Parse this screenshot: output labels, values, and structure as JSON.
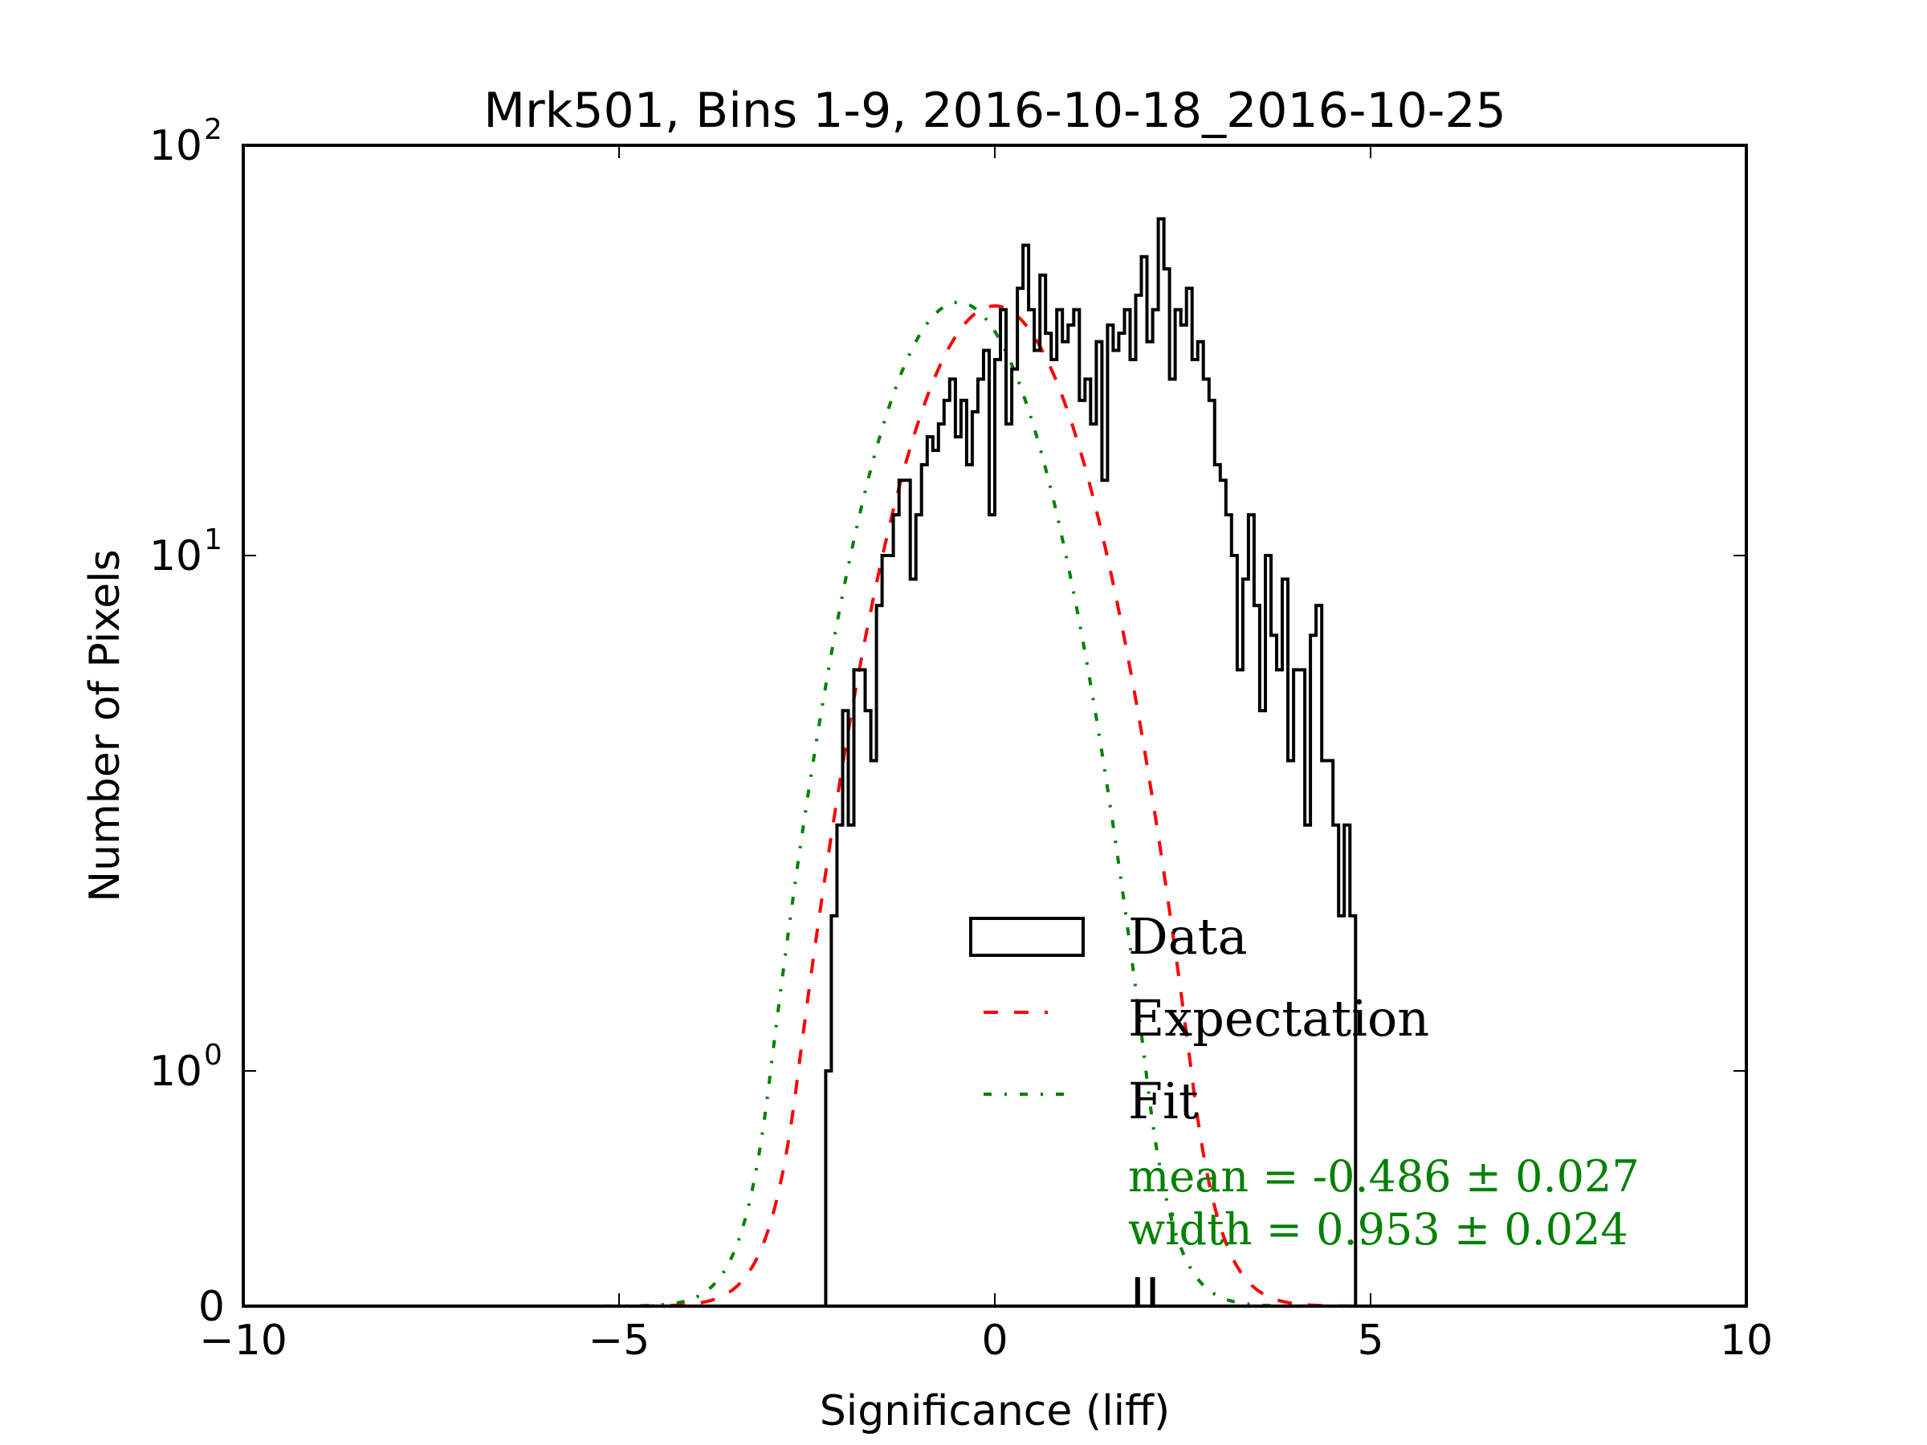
{
  "chart_data": {
    "type": "histogram",
    "title": "Mrk501, Bins 1-9, 2016-10-18_2016-10-25",
    "xlabel": "Significance (liff)",
    "ylabel": "Number of Pixels",
    "xlim": [
      -10,
      10
    ],
    "ylim": [
      0,
      100
    ],
    "yscale": "symlog",
    "x_ticks": [
      {
        "value": -10,
        "label": "−10"
      },
      {
        "value": -5,
        "label": "−5"
      },
      {
        "value": 0,
        "label": "0"
      },
      {
        "value": 5,
        "label": "5"
      },
      {
        "value": 10,
        "label": "10"
      }
    ],
    "y_ticks": [
      {
        "value": 0,
        "base": "0",
        "exp": ""
      },
      {
        "value": 1,
        "base": "10",
        "exp": "0"
      },
      {
        "value": 10,
        "base": "10",
        "exp": "1"
      },
      {
        "value": 100,
        "base": "10",
        "exp": "2"
      }
    ],
    "grid": false,
    "legend": {
      "placement": "lower-right",
      "entries": [
        {
          "label": "Data",
          "style": "step",
          "color": "#000000"
        },
        {
          "label": "Expectation",
          "style": "dashed",
          "color": "#ff0000"
        },
        {
          "label": "Fit",
          "style": "dash-dot",
          "color": "#008000"
        }
      ]
    },
    "annotations": [
      {
        "text": "mean = -0.486 ± 0.027",
        "color": "#008000"
      },
      {
        "text": "width = 0.953 ± 0.024",
        "color": "#008000"
      }
    ],
    "series": [
      {
        "name": "Data",
        "type": "step",
        "color": "#000000",
        "bin_width": 0.075,
        "bin_start": -2.25,
        "counts": [
          1,
          2,
          3,
          5,
          3,
          6,
          6,
          5,
          4,
          8,
          10,
          10,
          12,
          14,
          14,
          9,
          12,
          15,
          17,
          16,
          18,
          20,
          22,
          17,
          20,
          15,
          19,
          22,
          25,
          12,
          24,
          30,
          18,
          23,
          33,
          40,
          30,
          25,
          35,
          27,
          24,
          30,
          26,
          28,
          30,
          20,
          22,
          18,
          26,
          14,
          28,
          25,
          27,
          30,
          24,
          32,
          38,
          26,
          30,
          45,
          36,
          22,
          30,
          28,
          33,
          24,
          26,
          22,
          20,
          15,
          14,
          12,
          10,
          6,
          9,
          12,
          8,
          5,
          10,
          7,
          6,
          9,
          4,
          6,
          6,
          3,
          7,
          8,
          4,
          4,
          3,
          2,
          3,
          2,
          0,
          0,
          0,
          0,
          0,
          0
        ],
        "extra_bins": [
          {
            "x": 1.9,
            "count": 0.1
          },
          {
            "x": 2.1,
            "count": 0.1
          }
        ]
      },
      {
        "name": "Expectation",
        "type": "gaussian",
        "color": "#ff0000",
        "amplitude": 30.5,
        "mean": 0.0,
        "sigma": 1.0
      },
      {
        "name": "Fit",
        "type": "gaussian",
        "color": "#008000",
        "amplitude": 31.0,
        "mean": -0.486,
        "sigma": 0.953
      }
    ]
  }
}
